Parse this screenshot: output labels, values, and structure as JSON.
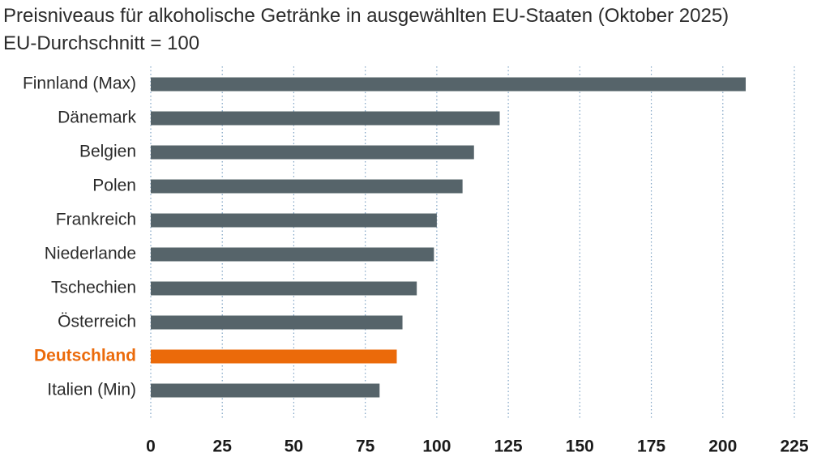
{
  "chart_data": {
    "type": "bar",
    "orientation": "horizontal",
    "title": "Preisniveaus für alkoholische Getränke in ausgewählten EU-Staaten (Oktober 2025)",
    "subtitle": "EU-Durchschnitt = 100",
    "xlabel": "",
    "ylabel": "",
    "xlim": [
      0,
      225
    ],
    "ticks": [
      0,
      25,
      50,
      75,
      100,
      125,
      150,
      175,
      200,
      225
    ],
    "grid": true,
    "colors": {
      "default": "#56646a",
      "highlight": "#eb6a0a",
      "grid": "#7fa3c4",
      "text": "#2b2b2b",
      "tick_text": "#1a1a1a"
    },
    "categories": [
      "Finnland (Max)",
      "Dänemark",
      "Belgien",
      "Polen",
      "Frankreich",
      "Niederlande",
      "Tschechien",
      "Österreich",
      "Deutschland",
      "Italien (Min)"
    ],
    "values": [
      208,
      122,
      113,
      109,
      100,
      99,
      93,
      88,
      86,
      80
    ],
    "highlight": [
      "Deutschland"
    ]
  }
}
